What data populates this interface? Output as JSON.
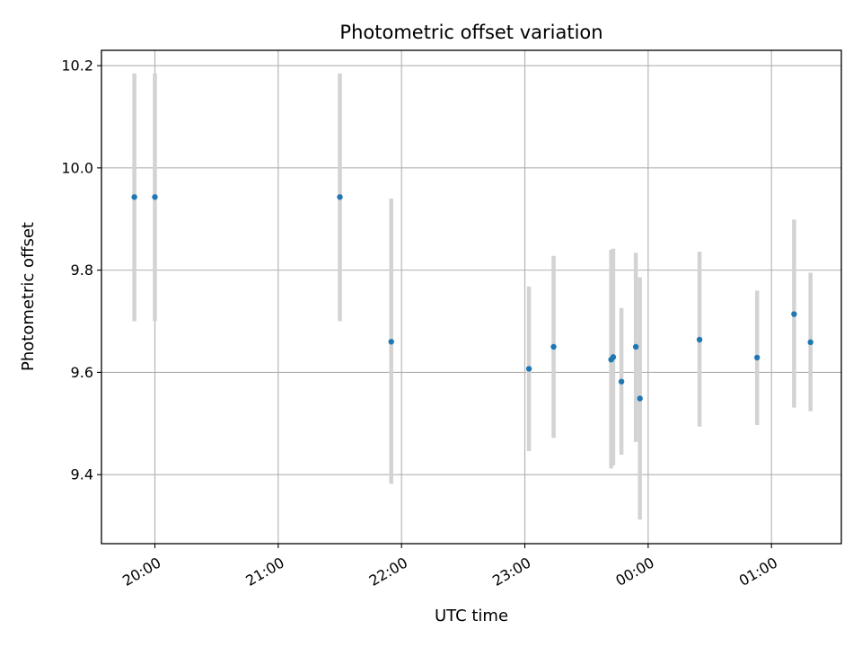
{
  "chart_data": {
    "type": "scatter",
    "title": "Photometric offset variation",
    "xlabel": "UTC time",
    "ylabel": "Photometric offset",
    "x_axis_type": "time",
    "xlim": [
      "19:34",
      "01:34"
    ],
    "ylim": [
      9.265,
      10.23
    ],
    "x_ticks": [
      "20:00",
      "21:00",
      "22:00",
      "23:00",
      "00:00",
      "01:00"
    ],
    "y_ticks": [
      9.4,
      9.6,
      9.8,
      10.0,
      10.2
    ],
    "y_tick_labels": [
      "9.4",
      "9.6",
      "9.8",
      "10.0",
      "10.2"
    ],
    "grid": true,
    "marker_color": "#1f77b4",
    "errorbar_color": "#d3d3d3",
    "points": [
      {
        "x": "19:50",
        "y": 9.943,
        "ymin": 9.7,
        "ymax": 10.185
      },
      {
        "x": "20:00",
        "y": 9.943,
        "ymin": 9.7,
        "ymax": 10.185
      },
      {
        "x": "21:30",
        "y": 9.943,
        "ymin": 9.7,
        "ymax": 10.185
      },
      {
        "x": "21:55",
        "y": 9.66,
        "ymin": 9.382,
        "ymax": 9.94
      },
      {
        "x": "23:02",
        "y": 9.607,
        "ymin": 9.446,
        "ymax": 9.768
      },
      {
        "x": "23:14",
        "y": 9.65,
        "ymin": 9.472,
        "ymax": 9.828
      },
      {
        "x": "23:42",
        "y": 9.625,
        "ymin": 9.412,
        "ymax": 9.84
      },
      {
        "x": "23:43",
        "y": 9.63,
        "ymin": 9.418,
        "ymax": 9.842
      },
      {
        "x": "23:47",
        "y": 9.582,
        "ymin": 9.439,
        "ymax": 9.726
      },
      {
        "x": "23:54",
        "y": 9.65,
        "ymin": 9.464,
        "ymax": 9.834
      },
      {
        "x": "23:56",
        "y": 9.549,
        "ymin": 9.312,
        "ymax": 9.786
      },
      {
        "x": "00:25",
        "y": 9.664,
        "ymin": 9.494,
        "ymax": 9.836
      },
      {
        "x": "00:53",
        "y": 9.629,
        "ymin": 9.497,
        "ymax": 9.76
      },
      {
        "x": "01:11",
        "y": 9.714,
        "ymin": 9.531,
        "ymax": 9.899
      },
      {
        "x": "01:19",
        "y": 9.659,
        "ymin": 9.524,
        "ymax": 9.795
      }
    ]
  }
}
